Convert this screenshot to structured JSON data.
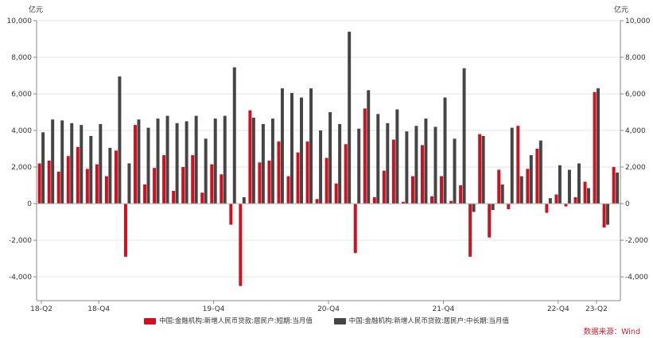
{
  "chart_data": {
    "type": "bar",
    "unit_left": "亿元",
    "unit_right": "亿元",
    "y_ticks": [
      "10,000",
      "8,000",
      "6,000",
      "4,000",
      "2,000",
      "0",
      "-2,000",
      "-4,000"
    ],
    "ylim": [
      -5300,
      10000
    ],
    "x_tick_labels": [
      "18-Q2",
      "18-Q4",
      "19-Q4",
      "20-Q4",
      "21-Q4",
      "22-Q4",
      "23-Q2"
    ],
    "grid": true,
    "legend_position": "bottom",
    "series": [
      {
        "name": "中国:金融机构:新增人民币贷款:居民户:短期:当月值",
        "color": "#d0101f",
        "values": [
          2200,
          2350,
          1750,
          2600,
          3100,
          1900,
          2150,
          1500,
          2900,
          -2900,
          4300,
          1050,
          1950,
          2650,
          700,
          2000,
          2650,
          600,
          2150,
          1600,
          -1150,
          -4500,
          5100,
          2250,
          2350,
          3400,
          1500,
          2800,
          3400,
          250,
          2500,
          1100,
          3250,
          -2700,
          5200,
          350,
          1800,
          3500,
          100,
          1500,
          3200,
          400,
          1500,
          150,
          1000,
          -2900,
          3800,
          -1850,
          1850,
          -300,
          4250,
          1900,
          3000,
          -500,
          500,
          -150,
          350,
          1200,
          6100,
          -1300,
          2000
        ]
      },
      {
        "name": "中国:金融机构:新增人民币贷款:居民户:中长期:当月值",
        "color": "#454545",
        "values": [
          3900,
          4600,
          4550,
          4400,
          4300,
          3700,
          4350,
          3050,
          6950,
          2200,
          4600,
          4150,
          4650,
          4800,
          4400,
          4500,
          4800,
          3550,
          4650,
          4800,
          7450,
          350,
          4700,
          4350,
          4650,
          6300,
          6050,
          5800,
          6300,
          4000,
          5000,
          4350,
          9400,
          4100,
          6200,
          4900,
          4400,
          5150,
          3950,
          4250,
          4650,
          4200,
          5800,
          3550,
          7400,
          -450,
          3700,
          -350,
          1050,
          4150,
          1500,
          2650,
          3450,
          300,
          2100,
          1850,
          2200,
          850,
          6300,
          -1150,
          1700
        ]
      }
    ]
  },
  "source_text": "数据来源：Wind"
}
